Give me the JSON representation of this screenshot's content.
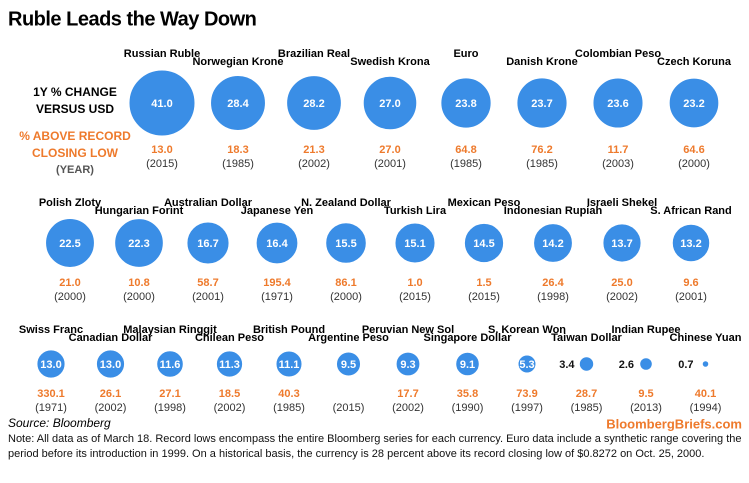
{
  "chart_data": {
    "type": "bubble",
    "title": "Ruble Leads the Way Down",
    "categories": [
      "Russian Ruble",
      "Norwegian Krone",
      "Brazilian Real",
      "Swedish Krona",
      "Euro",
      "Danish Krone",
      "Colombian Peso",
      "Czech Koruna",
      "Polish Zloty",
      "Hungarian Forint",
      "Australian Dollar",
      "Japanese Yen",
      "N. Zealand Dollar",
      "Turkish Lira",
      "Mexican Peso",
      "Indonesian Rupiah",
      "Israeli Shekel",
      "S. African Rand",
      "Swiss Franc",
      "Canadian Dollar",
      "Malaysian Ringgit",
      "Chilean Peso",
      "British Pound",
      "Argentine Peso",
      "Peruvian New Sol",
      "Singapore Dollar",
      "S. Korean Won",
      "Taiwan Dollar",
      "Indian Rupee",
      "Chinese Yuan"
    ],
    "series": [
      {
        "name": "1Y % CHANGE VERSUS USD",
        "color": "#3a8ee6",
        "values": [
          41.0,
          28.4,
          28.2,
          27.0,
          23.8,
          23.7,
          23.6,
          23.2,
          22.5,
          22.3,
          16.7,
          16.4,
          15.5,
          15.1,
          14.5,
          14.2,
          13.7,
          13.2,
          13.0,
          13.0,
          11.6,
          11.3,
          11.1,
          9.5,
          9.3,
          9.1,
          5.3,
          3.4,
          2.6,
          0.7
        ],
        "value_labels": [
          "41.0",
          "28.4",
          "28.2",
          "27.0",
          "23.8",
          "23.7",
          "23.6",
          "23.2",
          "22.5",
          "22.3",
          "16.7",
          "16.4",
          "15.5",
          "15.1",
          "14.5",
          "14.2",
          "13.7",
          "13.2",
          "13.0",
          "13.0",
          "11.6",
          "11.3",
          "11.1",
          "9.5",
          "9.3",
          "9.1",
          "5.3",
          "3.4",
          "2.6",
          "0.7"
        ]
      },
      {
        "name": "% ABOVE RECORD CLOSING LOW",
        "color": "#ee7a2c",
        "values": [
          13.0,
          18.3,
          21.3,
          27.0,
          64.8,
          76.2,
          11.7,
          64.6,
          21.0,
          10.8,
          58.7,
          195.4,
          86.1,
          1.0,
          1.5,
          26.4,
          25.0,
          9.6,
          330.1,
          26.1,
          27.1,
          18.5,
          40.3,
          null,
          17.7,
          35.8,
          73.9,
          28.7,
          9.5,
          40.1
        ],
        "value_labels": [
          "13.0",
          "18.3",
          "21.3",
          "27.0",
          "64.8",
          "76.2",
          "11.7",
          "64.6",
          "21.0",
          "10.8",
          "58.7",
          "195.4",
          "86.1",
          "1.0",
          "1.5",
          "26.4",
          "25.0",
          "9.6",
          "330.1",
          "26.1",
          "27.1",
          "18.5",
          "40.3",
          null,
          "17.7",
          "35.8",
          "73.9",
          "28.7",
          "9.5",
          "40.1"
        ]
      }
    ],
    "year_label": "(YEAR)",
    "years": [
      "(2015)",
      "(1985)",
      "(2002)",
      "(2001)",
      "(1985)",
      "(1985)",
      "(2003)",
      "(2000)",
      "(2000)",
      "(2000)",
      "(2001)",
      "(1971)",
      "(2000)",
      "(2015)",
      "(2015)",
      "(1998)",
      "(2002)",
      "(2001)",
      "(1971)",
      "(2002)",
      "(1998)",
      "(2002)",
      "(1985)",
      "(2015)",
      "(2002)",
      "(1990)",
      "(1997)",
      "(1985)",
      "(2013)",
      "(1994)"
    ],
    "source": "Source: Bloomberg",
    "brand": "BloombergBriefs.com",
    "note": "Note: All data as of March 18. Record lows encompass the entire Bloomberg series for each currency. Euro data include a synthetic range covering the period before its introduction in 1999. On a historical basis, the currency is 28 percent above its record closing low of $0.8272 on Oct. 25, 2000."
  }
}
